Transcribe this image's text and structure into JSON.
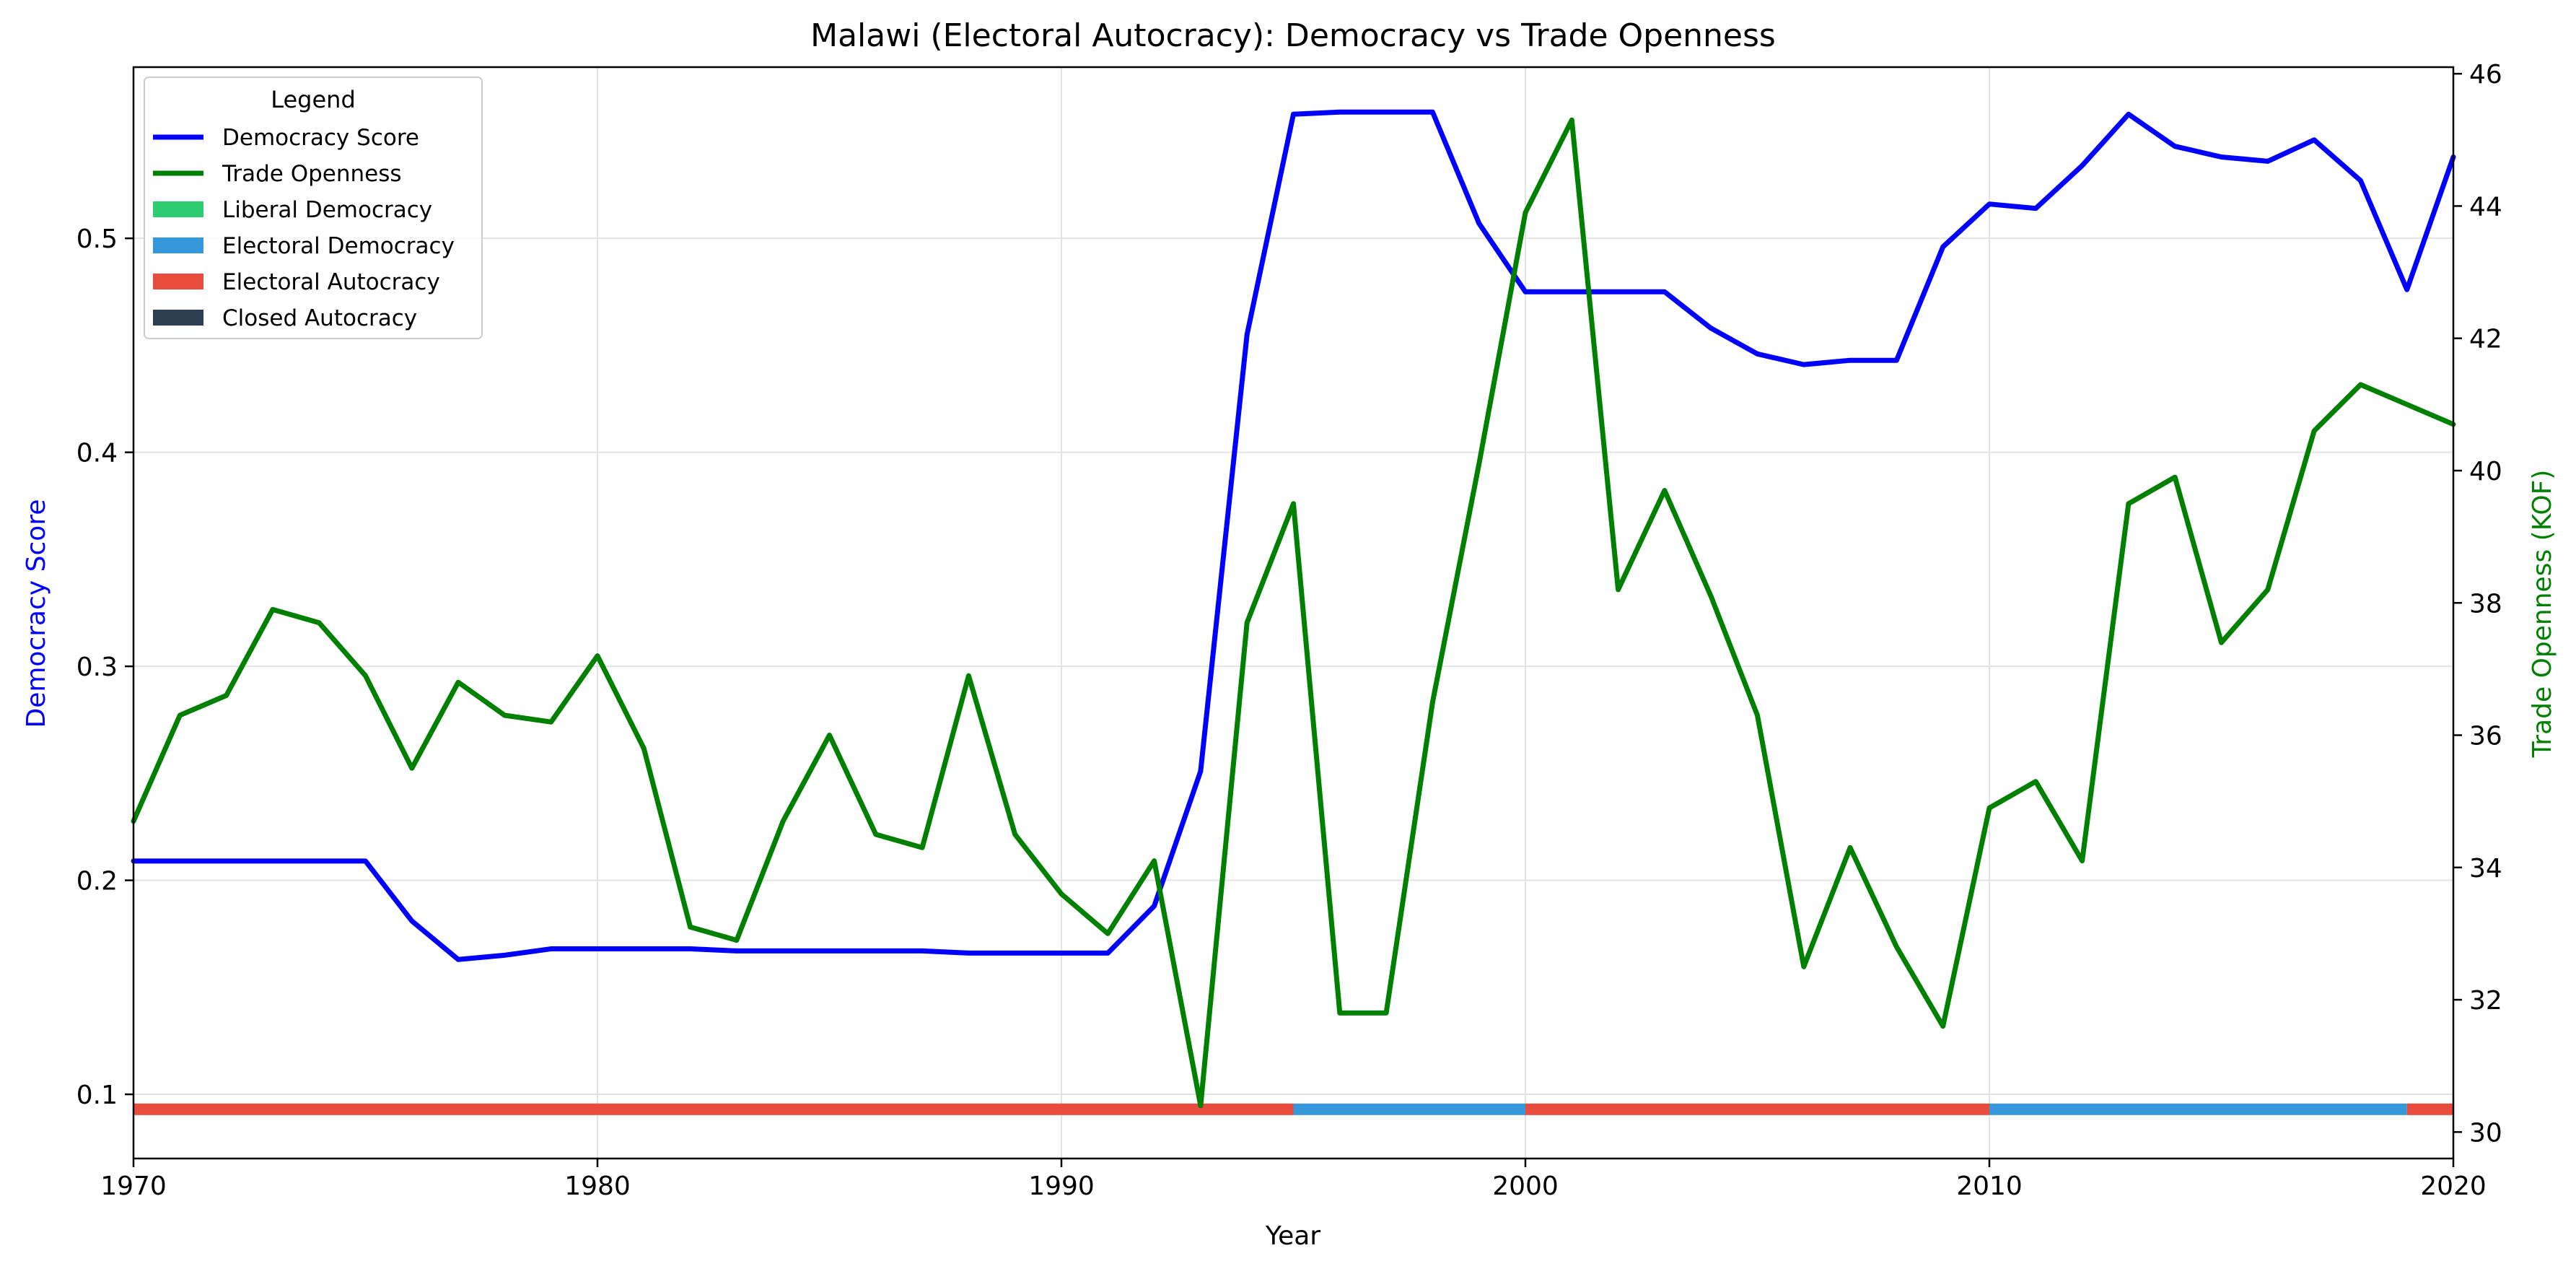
{
  "chart_data": {
    "type": "line",
    "title": "Malawi (Electoral Autocracy): Democracy vs Trade Openness",
    "xlabel": "Year",
    "ylabel_left": "Democracy Score",
    "ylabel_right": "Trade Openness (KOF)",
    "xlim": [
      1970,
      2020
    ],
    "ylim_left": [
      0.07,
      0.58
    ],
    "ylim_right": [
      29.6,
      46.1
    ],
    "x_ticks": [
      1970,
      1980,
      1990,
      2000,
      2010,
      2020
    ],
    "y_left_ticks": [
      0.1,
      0.2,
      0.3,
      0.4,
      0.5
    ],
    "y_right_ticks": [
      30,
      32,
      34,
      36,
      38,
      40,
      42,
      44,
      46
    ],
    "y_left_tick_labels": [
      "0.1",
      "0.2",
      "0.3",
      "0.4",
      "0.5"
    ],
    "grid": true,
    "x": [
      1970,
      1971,
      1972,
      1973,
      1974,
      1975,
      1976,
      1977,
      1978,
      1979,
      1980,
      1981,
      1982,
      1983,
      1984,
      1985,
      1986,
      1987,
      1988,
      1989,
      1990,
      1991,
      1992,
      1993,
      1994,
      1995,
      1996,
      1997,
      1998,
      1999,
      2000,
      2001,
      2002,
      2003,
      2004,
      2005,
      2006,
      2007,
      2008,
      2009,
      2010,
      2011,
      2012,
      2013,
      2014,
      2015,
      2016,
      2017,
      2018,
      2019,
      2020
    ],
    "series": [
      {
        "name": "Democracy Score",
        "axis": "left",
        "color": "#0000ff",
        "values": [
          0.209,
          0.209,
          0.209,
          0.209,
          0.209,
          0.209,
          0.181,
          0.163,
          0.165,
          0.168,
          0.168,
          0.168,
          0.168,
          0.167,
          0.167,
          0.167,
          0.167,
          0.167,
          0.166,
          0.166,
          0.166,
          0.166,
          0.188,
          0.251,
          0.455,
          0.558,
          0.559,
          0.559,
          0.559,
          0.507,
          0.475,
          0.475,
          0.475,
          0.475,
          0.458,
          0.446,
          0.441,
          0.443,
          0.443,
          0.496,
          0.516,
          0.514,
          0.534,
          0.558,
          0.543,
          0.538,
          0.536,
          0.546,
          0.527,
          0.476,
          0.538
        ]
      },
      {
        "name": "Trade Openness",
        "axis": "right",
        "color": "#008000",
        "values": [
          34.7,
          36.3,
          36.6,
          37.9,
          37.7,
          36.9,
          35.5,
          36.8,
          36.3,
          36.2,
          37.2,
          35.8,
          33.1,
          32.9,
          34.7,
          36.0,
          34.5,
          34.3,
          36.9,
          34.5,
          33.6,
          33.0,
          34.1,
          30.4,
          37.7,
          39.5,
          31.8,
          31.8,
          36.5,
          40.1,
          43.9,
          45.3,
          38.2,
          39.7,
          38.1,
          36.3,
          32.5,
          34.3,
          32.8,
          31.6,
          34.9,
          35.3,
          34.1,
          39.5,
          39.9,
          37.4,
          38.2,
          40.6,
          41.3,
          41.0,
          40.7
        ]
      }
    ],
    "regime_bar": {
      "y_value": 0.093,
      "segments": [
        {
          "start": 1970,
          "end": 1995,
          "regime": "Electoral Autocracy"
        },
        {
          "start": 1995,
          "end": 2000,
          "regime": "Electoral Democracy"
        },
        {
          "start": 2000,
          "end": 2010,
          "regime": "Electoral Autocracy"
        },
        {
          "start": 2010,
          "end": 2019,
          "regime": "Electoral Democracy"
        },
        {
          "start": 2019,
          "end": 2020,
          "regime": "Electoral Autocracy"
        }
      ]
    },
    "regime_colors": {
      "Liberal Democracy": "#2ecc71",
      "Electoral Democracy": "#3498db",
      "Electoral Autocracy": "#e74c3c",
      "Closed Autocracy": "#2c3e50"
    },
    "legend": {
      "title": "Legend",
      "placement": "top-left",
      "entries": [
        {
          "label": "Democracy Score",
          "kind": "line",
          "color": "#0000ff"
        },
        {
          "label": "Trade Openness",
          "kind": "line",
          "color": "#008000"
        },
        {
          "label": "Liberal Democracy",
          "kind": "patch",
          "color": "#2ecc71"
        },
        {
          "label": "Electoral Democracy",
          "kind": "patch",
          "color": "#3498db"
        },
        {
          "label": "Electoral Autocracy",
          "kind": "patch",
          "color": "#e74c3c"
        },
        {
          "label": "Closed Autocracy",
          "kind": "patch",
          "color": "#2c3e50"
        }
      ]
    }
  }
}
